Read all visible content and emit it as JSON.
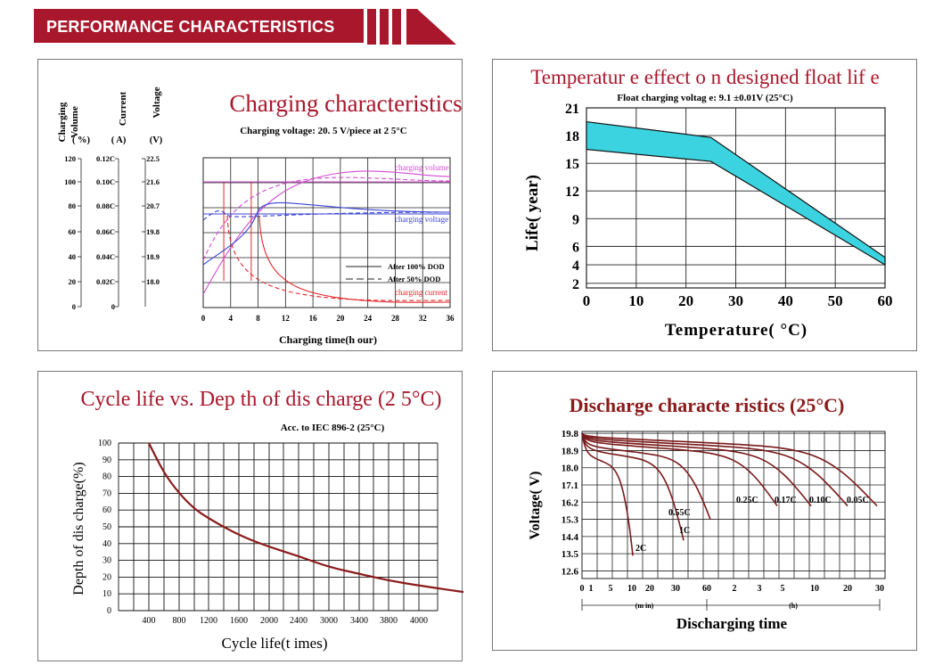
{
  "header": {
    "title": "PERFORMANCE    CHARACTERISTICS"
  },
  "chart_data": [
    {
      "type": "line",
      "title": "Charging characteristics",
      "subtitle": "Charging voltage:    20. 5  V/piece at 2 5°C",
      "xlabel": "Charging time(h our)",
      "x_ticks": [
        "0",
        "4",
        "8",
        "12",
        "16",
        "20",
        "24",
        "28",
        "32",
        "36"
      ],
      "xlim": [
        0,
        36
      ],
      "axes": [
        {
          "title": "Charging Volume",
          "unit": "( %)",
          "ticks": [
            "120",
            "100",
            "80",
            "60",
            "40",
            "20",
            "0"
          ]
        },
        {
          "title": "Current",
          "unit": "( A)",
          "ticks": [
            "0.12C",
            "0.10C",
            "0.08C",
            "0.06C",
            "0.04C",
            "0.02C",
            "0"
          ]
        },
        {
          "title": "Voltage",
          "unit": "(V)",
          "ticks": [
            "22.5",
            "21.6",
            "20.7",
            "19.8",
            "18.9",
            "18.0"
          ]
        }
      ],
      "legend": [
        "After 100% DOD",
        "After 50% DOD"
      ],
      "series": [
        {
          "name": "charging volume",
          "color": "#d24bd2"
        },
        {
          "name": "charging voltage",
          "color": "#3b44d6"
        },
        {
          "name": "charging current",
          "color": "#e3272a"
        }
      ]
    },
    {
      "type": "area",
      "title": "Temperatur e effect o n designed  float lif e",
      "subtitle": "Float charging voltag   e:  9.1 ±0.01V (25°C)",
      "xlabel": "Temperature( °C)",
      "ylabel": "Life(  year)",
      "x_ticks": [
        "0",
        "10",
        "20",
        "30",
        "40",
        "50",
        "60"
      ],
      "y_ticks": [
        "21",
        "18",
        "15",
        "12",
        "9",
        "6",
        "4",
        "2"
      ],
      "xlim": [
        0,
        60
      ],
      "ylim": [
        1.5,
        21
      ],
      "upper": [
        [
          0,
          19.5
        ],
        [
          25,
          17.8
        ],
        [
          60,
          4.8
        ]
      ],
      "lower": [
        [
          0,
          16.5
        ],
        [
          25,
          15.2
        ],
        [
          60,
          4.0
        ]
      ],
      "fill_color": "#3bd3e0"
    },
    {
      "type": "line",
      "title": "Cycle life vs. Dep th of dis charge (2 5°C)",
      "subtitle": "Acc. to IEC 896-2    (25°C)",
      "xlabel": "Cycle life(t imes)",
      "ylabel": "Depth of dis charge(%)",
      "x_ticks": [
        "400",
        "800",
        "1200",
        "1600",
        "2000",
        "2400",
        "3000",
        "3400",
        "3800",
        "4000"
      ],
      "y_ticks": [
        "100",
        "90",
        "80",
        "70",
        "60",
        "50",
        "40",
        "30",
        "20",
        "10",
        "0"
      ],
      "ylim": [
        0,
        100
      ],
      "points": [
        [
          400,
          100
        ],
        [
          600,
          82
        ],
        [
          800,
          70
        ],
        [
          1000,
          61
        ],
        [
          1200,
          55
        ],
        [
          1600,
          45
        ],
        [
          2000,
          38
        ],
        [
          2400,
          32.5
        ],
        [
          3000,
          26
        ],
        [
          3400,
          22
        ],
        [
          3800,
          18
        ],
        [
          4000,
          15
        ],
        [
          4300,
          11
        ]
      ],
      "line_color": "#8b1a1a"
    },
    {
      "type": "line",
      "title": "Discharge characte ristics (25°C)",
      "ylabel": "Voltage(  V)",
      "xlabel": "Discharging time",
      "x_ticks": [
        "0",
        "1",
        "5",
        "10",
        "20",
        "30",
        "60",
        "2",
        "3",
        "5",
        "10",
        "20",
        "30"
      ],
      "x_groups": [
        "(m in)",
        "(h)"
      ],
      "y_ticks": [
        "19.8",
        "18.9",
        "18.0",
        "17.1",
        "16.2",
        "15.3",
        "14.4",
        "13.5",
        "12.6"
      ],
      "ylim": [
        12.2,
        19.9
      ],
      "series": [
        {
          "name": "2C",
          "end_voltage": 13.4
        },
        {
          "name": "1C",
          "end_voltage": 14.2
        },
        {
          "name": "0.55C",
          "end_voltage": 15.3
        },
        {
          "name": "0.25C",
          "end_voltage": 16.0
        },
        {
          "name": "0.17C",
          "end_voltage": 16.0
        },
        {
          "name": "0.10C",
          "end_voltage": 16.0
        },
        {
          "name": "0.05C",
          "end_voltage": 16.0
        }
      ],
      "line_color": "#7a1a1a"
    }
  ]
}
